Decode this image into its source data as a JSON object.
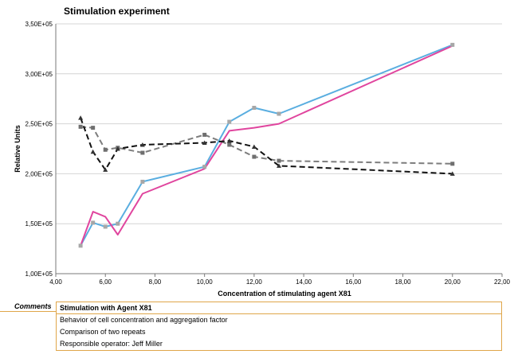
{
  "chart_data": {
    "type": "line",
    "title": "Stimulation experiment",
    "xlabel": "Concentration of stimulating agent X81",
    "ylabel": "Relative Units",
    "xlim": [
      4,
      22
    ],
    "ylim": [
      100000,
      350000
    ],
    "x_ticks": [
      4,
      6,
      8,
      10,
      12,
      14,
      16,
      18,
      20,
      22
    ],
    "x_tick_labels": [
      "4,00",
      "6,00",
      "8,00",
      "10,00",
      "12,00",
      "14,00",
      "16,00",
      "18,00",
      "20,00",
      "22,00"
    ],
    "y_ticks": [
      100000,
      150000,
      200000,
      250000,
      300000,
      350000
    ],
    "y_tick_labels": [
      "1,00E+05",
      "1,50E+05",
      "2,00E+05",
      "2,50E+05",
      "3,00E+05",
      "3,50E+05"
    ],
    "grid": {
      "horizontal": true,
      "vertical": false
    },
    "series": [
      {
        "color": "#5aaee0",
        "dash": "solid",
        "marker": "square",
        "marker_color": "#a7a7a7",
        "points": [
          [
            5,
            128000
          ],
          [
            5.5,
            151000
          ],
          [
            6,
            147000
          ],
          [
            6.5,
            150000
          ],
          [
            7.5,
            192000
          ],
          [
            10,
            207000
          ],
          [
            11,
            252000
          ],
          [
            12,
            266000
          ],
          [
            13,
            260000
          ],
          [
            20,
            329000
          ]
        ]
      },
      {
        "color": "#e0459e",
        "dash": "solid",
        "marker": "none",
        "points": [
          [
            5,
            128000
          ],
          [
            5.5,
            162000
          ],
          [
            6,
            157000
          ],
          [
            6.5,
            139000
          ],
          [
            7.5,
            180000
          ],
          [
            10,
            205000
          ],
          [
            11,
            243000
          ],
          [
            12,
            246000
          ],
          [
            13,
            250000
          ],
          [
            20,
            328000
          ]
        ]
      },
      {
        "color": "#7d7d7d",
        "dash": "dashed",
        "marker": "square",
        "marker_color": "#6f6f6f",
        "points": [
          [
            5,
            247000
          ],
          [
            5.5,
            246000
          ],
          [
            6,
            224000
          ],
          [
            6.5,
            226000
          ],
          [
            7.5,
            221000
          ],
          [
            10,
            239000
          ],
          [
            11,
            229000
          ],
          [
            12,
            217000
          ],
          [
            13,
            213000
          ],
          [
            20,
            210000
          ]
        ]
      },
      {
        "color": "#111111",
        "dash": "dashed",
        "marker": "triangle",
        "marker_color": "#333333",
        "points": [
          [
            5,
            256000
          ],
          [
            5.5,
            222000
          ],
          [
            6,
            204000
          ],
          [
            6.5,
            225000
          ],
          [
            7.5,
            229000
          ],
          [
            10,
            231000
          ],
          [
            11,
            233000
          ],
          [
            12,
            227000
          ],
          [
            13,
            208000
          ],
          [
            20,
            200000
          ]
        ]
      }
    ]
  },
  "comments": {
    "label": "Comments",
    "header": "Stimulation with Agent X81",
    "lines": [
      "Behavior of cell concentration and aggregation factor",
      "Comparison of two repeats",
      "Responsible operator: Jeff Miller"
    ]
  }
}
